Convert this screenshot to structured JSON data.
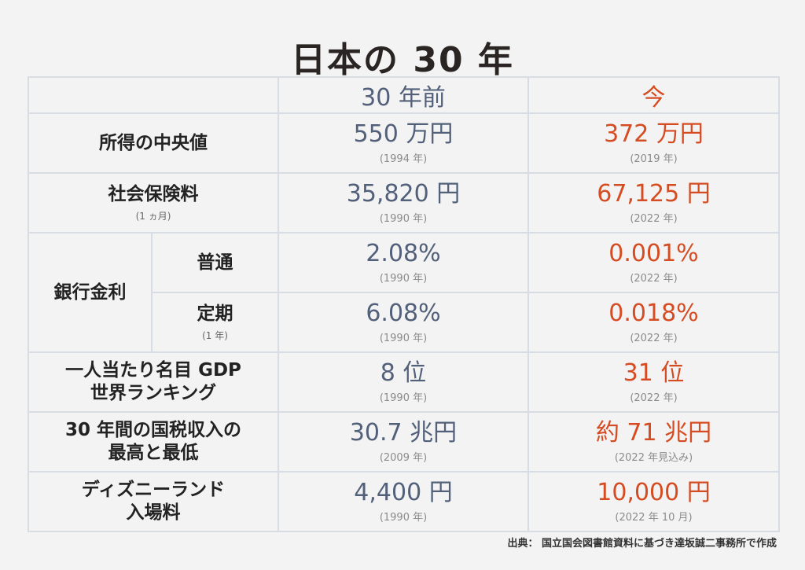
{
  "title": "日本の 30 年",
  "columns": {
    "before": "30 年前",
    "now": "今"
  },
  "rows": [
    {
      "label": "所得の中央値",
      "before_value": "550 万円",
      "before_year": "(1994 年)",
      "now_value": "372 万円",
      "now_year": "(2019 年)"
    },
    {
      "label": "社会保険料",
      "sublabel": "(1 ヵ月)",
      "before_value": "35,820 円",
      "before_year": "(1990 年)",
      "now_value": "67,125 円",
      "now_year": "(2022 年)"
    },
    {
      "group_label": "銀行金利",
      "label": "普通",
      "before_value": "2.08%",
      "before_year": "(1990 年)",
      "now_value": "0.001%",
      "now_year": "(2022 年)"
    },
    {
      "label": "定期",
      "sublabel": "(1 年)",
      "before_value": "6.08%",
      "before_year": "(1990 年)",
      "now_value": "0.018%",
      "now_year": "(2022 年)"
    },
    {
      "label_line1": "一人当たり名目 GDP",
      "label_line2": "世界ランキング",
      "before_value": "8 位",
      "before_year": "(1990 年)",
      "now_value": "31 位",
      "now_year": "(2022 年)"
    },
    {
      "label_line1": "30 年間の国税収入の",
      "label_line2": "最高と最低",
      "before_value": "30.7 兆円",
      "before_year": "(2009 年)",
      "now_value": "約 71 兆円",
      "now_year": "(2022 年見込み)"
    },
    {
      "label_line1": "ディズニーランド",
      "label_line2": "入場料",
      "before_value": "4,400 円",
      "before_year": "(1990 年)",
      "now_value": "10,000 円",
      "now_year": "(2022 年 10 月)"
    }
  ],
  "source": "出典： 国立国会図書館資料に基づき達坂誠二事務所で作成",
  "colors": {
    "before": "#52607a",
    "now": "#d64c22",
    "background": "#f3f3f3",
    "border": "#d8dce3"
  }
}
